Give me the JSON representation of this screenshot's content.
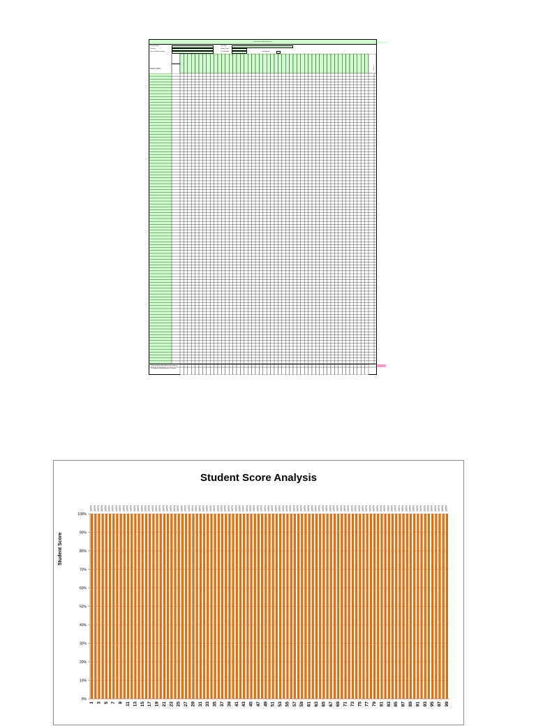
{
  "sheet": {
    "title": "Student Score Analysis Form",
    "header_fields": {
      "left": [
        "School Name",
        "Teacher",
        "Date of Measurement"
      ],
      "middle": [
        "Test Title",
        "Grade Level",
        "Test Number"
      ],
      "right": "# of Students"
    },
    "side_labels": {
      "student_header": "Student Name",
      "last": "Score %"
    },
    "footer_labels": [
      "Total Students Who Answered Correctly",
      "% Students Who Answered Correctly"
    ],
    "row_count": 100,
    "question_count": 50,
    "colors": {
      "fill": "#ccffcc",
      "marker": "#ff99cc"
    }
  },
  "chart_data": {
    "type": "bar",
    "title": "Student Score Analysis",
    "xlabel": "",
    "ylabel": "Student Score",
    "ylim": [
      0,
      1
    ],
    "y_ticks": [
      "0%",
      "10%",
      "20%",
      "30%",
      "40%",
      "50%",
      "60%",
      "70%",
      "80%",
      "90%",
      "100%"
    ],
    "categories": [
      1,
      2,
      3,
      4,
      5,
      6,
      7,
      8,
      9,
      10,
      11,
      12,
      13,
      14,
      15,
      16,
      17,
      18,
      19,
      20,
      21,
      22,
      23,
      24,
      25,
      26,
      27,
      28,
      29,
      30,
      31,
      32,
      33,
      34,
      35,
      36,
      37,
      38,
      39,
      40,
      41,
      42,
      43,
      44,
      45,
      46,
      47,
      48,
      49,
      50,
      51,
      52,
      53,
      54,
      55,
      56,
      57,
      58,
      59,
      60,
      61,
      62,
      63,
      64,
      65,
      66,
      67,
      68,
      69,
      70,
      71,
      72,
      73,
      74,
      75,
      76,
      77,
      78,
      79,
      80,
      81,
      82,
      83,
      84,
      85,
      86,
      87,
      88,
      89,
      90,
      91,
      92,
      93,
      94,
      95,
      96,
      97,
      98,
      99
    ],
    "x_tick_labels": [
      1,
      3,
      5,
      7,
      9,
      11,
      13,
      15,
      17,
      19,
      21,
      23,
      25,
      27,
      29,
      31,
      33,
      35,
      37,
      39,
      41,
      43,
      45,
      47,
      49,
      51,
      53,
      55,
      57,
      59,
      61,
      63,
      65,
      67,
      69,
      71,
      73,
      75,
      77,
      79,
      81,
      83,
      85,
      87,
      89,
      91,
      93,
      95,
      97,
      99
    ],
    "values": [
      1,
      1,
      1,
      1,
      1,
      1,
      1,
      1,
      1,
      1,
      1,
      1,
      1,
      1,
      1,
      1,
      1,
      1,
      1,
      1,
      1,
      1,
      1,
      1,
      1,
      1,
      1,
      1,
      1,
      1,
      1,
      1,
      1,
      1,
      1,
      1,
      1,
      1,
      1,
      1,
      1,
      1,
      1,
      1,
      1,
      1,
      1,
      1,
      1,
      1,
      1,
      1,
      1,
      1,
      1,
      1,
      1,
      1,
      1,
      1,
      1,
      1,
      1,
      1,
      1,
      1,
      1,
      1,
      1,
      1,
      1,
      1,
      1,
      1,
      1,
      1,
      1,
      1,
      1,
      1,
      1,
      1,
      1,
      1,
      1,
      1,
      1,
      1,
      1,
      1,
      1,
      1,
      1,
      1,
      1,
      1,
      1,
      1,
      1
    ],
    "data_label": "100%",
    "grid": true,
    "colors": {
      "bar": "#e46c0a",
      "grid": "#a6a6a6"
    }
  }
}
